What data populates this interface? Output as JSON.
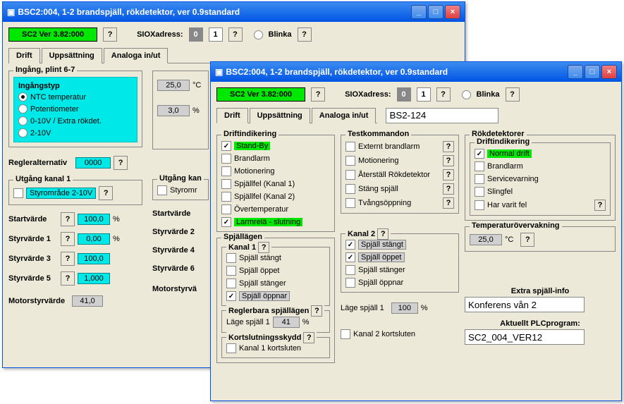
{
  "w1": {
    "title": "BSC2:004, 1-2 brandspjäll, rökdetektor, ver 0.9standard",
    "ver": "SC2 Ver 3.82:000",
    "siox_lbl": "SIOXadress:",
    "a0": "0",
    "a1": "1",
    "blinka": "Blinka",
    "tabs": [
      "Drift",
      "Uppsättning",
      "Analoga in/ut"
    ],
    "active": 2,
    "ing_grp": "Ingång, plint 6-7",
    "ingtyp": "Ingångstyp",
    "ingopts": [
      "NTC temperatur",
      "Potentiometer",
      "0-10V / Extra rökdet.",
      "2-10V"
    ],
    "ingsel": 0,
    "temp": "25,0",
    "temp_u": "°C",
    "pct": "3,0",
    "pct_u": "%",
    "regler": "Regleralternativ",
    "reglerval": "0000",
    "utg1": "Utgång kanal 1",
    "utg2": "Utgång kan",
    "styr": "Styrområde 2-10V",
    "styr2": "Styromr",
    "rows1": [
      [
        "Startvärde",
        "100,0",
        "%"
      ],
      [
        "Styrvärde 1",
        "0,00",
        "%"
      ],
      [
        "Styrvärde 3",
        "100,0"
      ],
      [
        "Styrvärde 5",
        "1,000"
      ]
    ],
    "rows2": [
      "Startvärde",
      "Styrvärde 2",
      "Styrvärde 4",
      "Styrvärde 6"
    ],
    "motor": "Motorstyrvärde",
    "motorv": "41,0",
    "motor2": "Motorstyrvä"
  },
  "w2": {
    "title": "BSC2:004, 1-2 brandspjäll, rökdetektor, ver 0.9standard",
    "ver": "SC2 Ver 3.82:000",
    "siox_lbl": "SIOXadress:",
    "a0": "0",
    "a1": "1",
    "blinka": "Blinka",
    "tabs": [
      "Drift",
      "Uppsättning",
      "Analoga in/ut"
    ],
    "active": 0,
    "txtin": "BS2-124",
    "drift_grp": "Driftindikering",
    "drift": [
      [
        true,
        "Stand-By",
        true
      ],
      [
        false,
        "Brandlarm",
        false
      ],
      [
        false,
        "Motionering",
        false
      ],
      [
        false,
        "Spjällfel (Kanal 1)",
        false
      ],
      [
        false,
        "Spjällfel (Kanal 2)",
        false
      ],
      [
        false,
        "Övertemperatur",
        false
      ],
      [
        true,
        "Larmrelä - slutning",
        true
      ]
    ],
    "test_grp": "Testkommandon",
    "test": [
      [
        false,
        "Externt brandlarm"
      ],
      [
        false,
        "Motionering"
      ],
      [
        false,
        "Återställ Rökdetektor"
      ],
      [
        false,
        "Stäng spjäll"
      ],
      [
        false,
        "Tvångsöppning"
      ]
    ],
    "rok_grp": "Rökdetektorer",
    "rok_sub": "Driftindikering",
    "rok": [
      [
        true,
        "Normal drift",
        true
      ],
      [
        false,
        "Brandlarm",
        false
      ],
      [
        false,
        "Servicevarning",
        false
      ],
      [
        false,
        "Slingfel",
        false
      ],
      [
        false,
        "Har varit fel",
        false
      ]
    ],
    "tempov": "Temperaturövervakning",
    "temp": "25,0",
    "temp_u": "°C",
    "spj_grp": "Spjällägen",
    "k1": "Kanal 1",
    "k2": "Kanal 2",
    "spj1": [
      [
        false,
        "Spjäll stängt",
        false
      ],
      [
        false,
        "Spjäll öppet",
        false
      ],
      [
        false,
        "Spjäll stänger",
        false
      ],
      [
        true,
        "Spjäll öppnar",
        true
      ]
    ],
    "spj2": [
      [
        true,
        "Spjäll stängt",
        true
      ],
      [
        true,
        "Spjäll öppet",
        true
      ],
      [
        false,
        "Spjäll stänger",
        false
      ],
      [
        false,
        "Spjäll öppnar",
        false
      ]
    ],
    "reg_grp": "Reglerbara spjällägen",
    "lage": "Läge spjäll 1",
    "lage1": "41",
    "lage2": "100",
    "pct": "%",
    "kort_grp": "Kortslutningsskydd",
    "kort1": "Kanal 1 kortsluten",
    "kort2": "Kanal 2 kortsluten",
    "extra": "Extra spjäll-info",
    "extra_v": "Konferens vån 2",
    "plc": "Aktuellt PLCprogram:",
    "plc_v": "SC2_004_VER12"
  }
}
